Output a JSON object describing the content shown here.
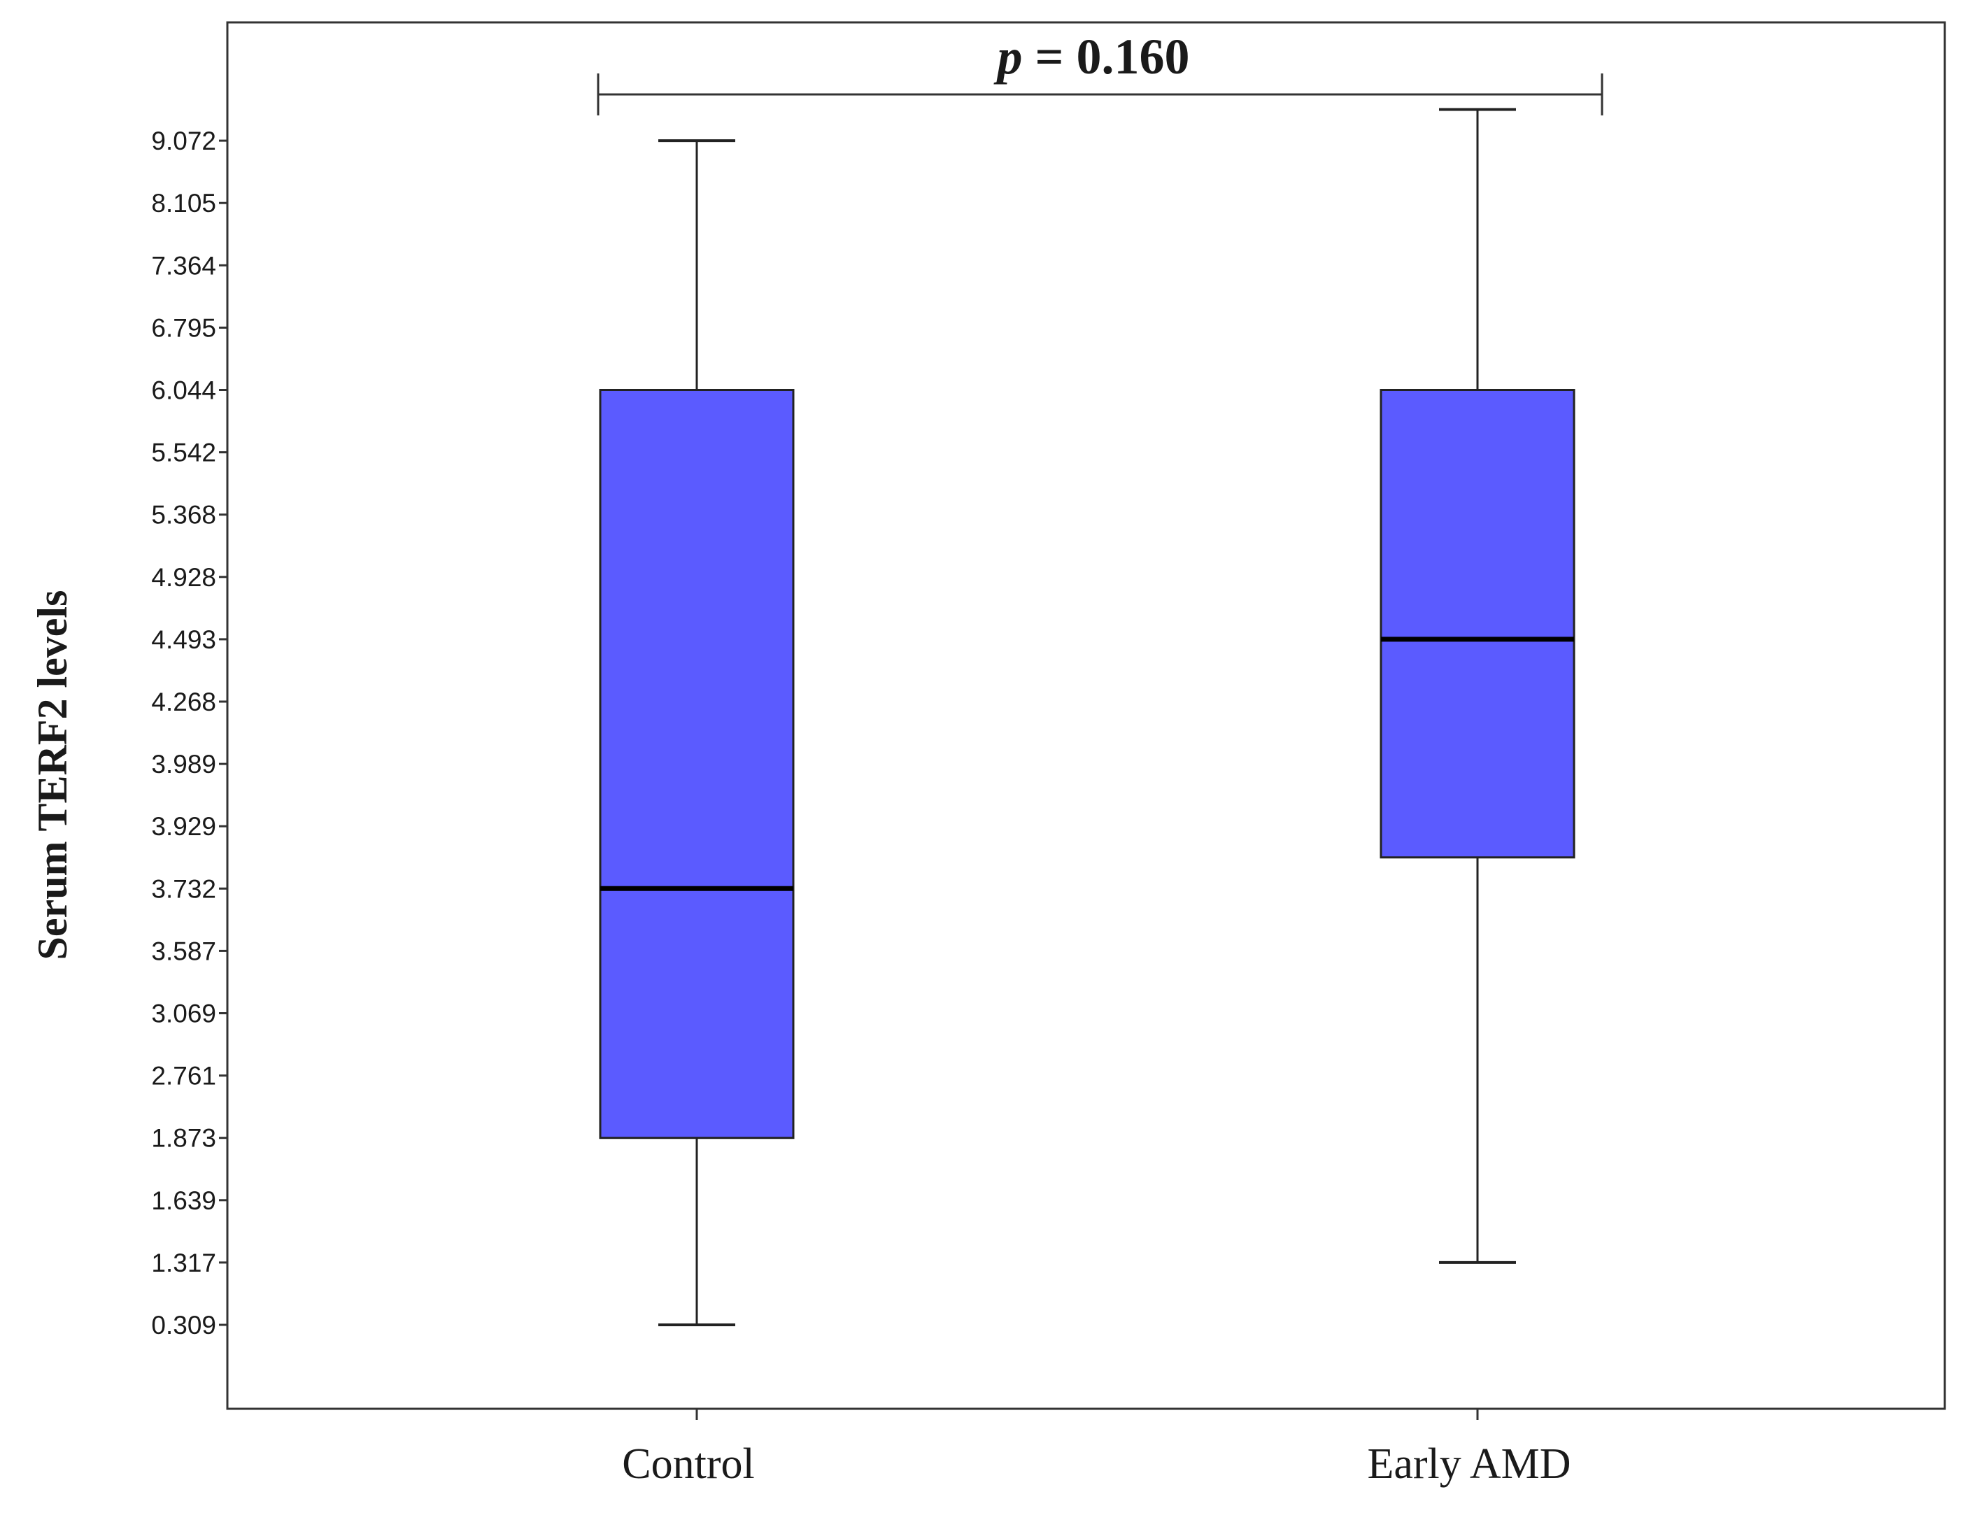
{
  "chart_data": {
    "type": "box",
    "ylabel": "Serum TERF2 levels",
    "categories": [
      "Control",
      "Early AMD"
    ],
    "y_ticks": [
      "0.309",
      "1.317",
      "1.639",
      "1.873",
      "2.761",
      "3.069",
      "3.587",
      "3.732",
      "3.929",
      "3.989",
      "4.268",
      "4.493",
      "4.928",
      "5.368",
      "5.542",
      "6.044",
      "6.795",
      "7.364",
      "8.105",
      "9.072"
    ],
    "y_axis_scale": "ordinal (labels evenly spaced, one step per tick)",
    "series": [
      {
        "category": "Control",
        "min_level": 0,
        "q1_level": 3,
        "median_level": 7,
        "q3_level": 15,
        "max_level": 19
      },
      {
        "category": "Early AMD",
        "min_level": 1,
        "q1_level": 7.5,
        "median_level": 11,
        "q3_level": 15,
        "max_level": 19.5
      }
    ],
    "box_color": "#5b5bff",
    "annotation": {
      "p_symbol": "p",
      "p_rest": " = 0.160"
    },
    "grid": false,
    "legend": "none"
  }
}
